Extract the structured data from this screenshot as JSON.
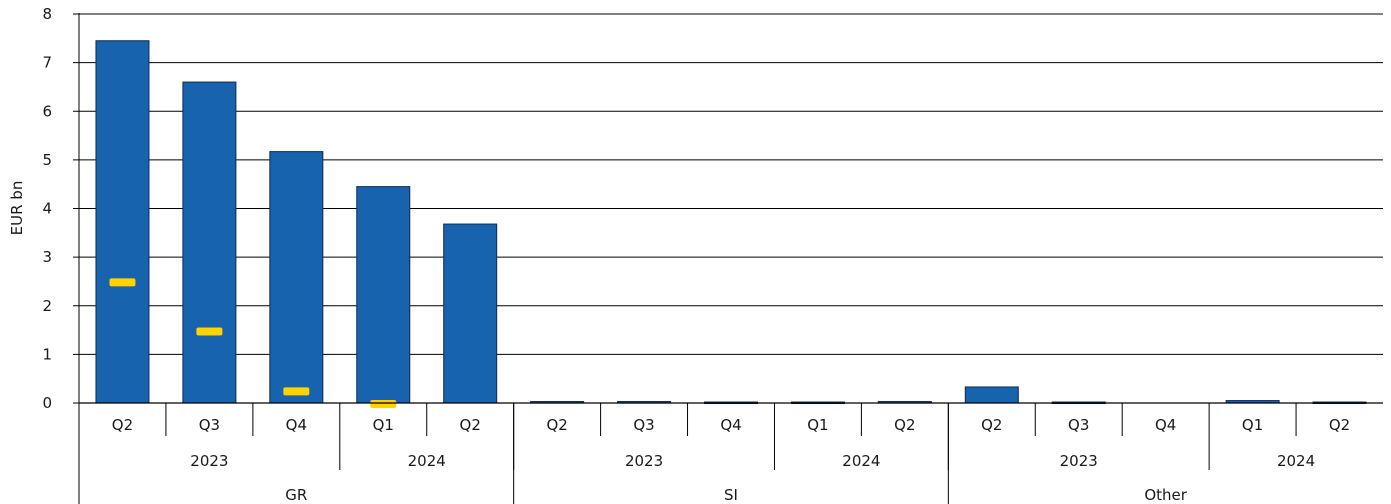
{
  "chart_data": {
    "type": "bar",
    "ylabel": "EUR bn",
    "ylim": [
      0,
      8
    ],
    "yticks": [
      0,
      1,
      2,
      3,
      4,
      5,
      6,
      7,
      8
    ],
    "grid": true,
    "colors": {
      "bar": "#1763AE",
      "bar_outline": "#0f2a55",
      "marker": "#FFD200",
      "grid": "#000000"
    },
    "categories": [
      "Q2",
      "Q3",
      "Q4",
      "Q1",
      "Q2",
      "Q2",
      "Q3",
      "Q4",
      "Q1",
      "Q2",
      "Q2",
      "Q3",
      "Q4",
      "Q1",
      "Q2"
    ],
    "years": [
      {
        "label": "2023",
        "span": [
          0,
          2
        ]
      },
      {
        "label": "2024",
        "span": [
          3,
          4
        ]
      },
      {
        "label": "2023",
        "span": [
          5,
          7
        ]
      },
      {
        "label": "2024",
        "span": [
          8,
          9
        ]
      },
      {
        "label": "2023",
        "span": [
          10,
          12
        ]
      },
      {
        "label": "2024",
        "span": [
          13,
          14
        ]
      }
    ],
    "groups": [
      {
        "label": "GR",
        "span": [
          0,
          4
        ]
      },
      {
        "label": "SI",
        "span": [
          5,
          9
        ]
      },
      {
        "label": "Other",
        "span": [
          10,
          14
        ]
      }
    ],
    "series": [
      {
        "type": "bar",
        "values": [
          7.45,
          6.6,
          5.17,
          4.45,
          3.68,
          0.03,
          0.03,
          0.02,
          0.02,
          0.03,
          0.33,
          0.02,
          0,
          0.05,
          0.02
        ]
      },
      {
        "type": "marker",
        "values": [
          2.48,
          1.47,
          0.24,
          -0.02,
          null,
          null,
          null,
          null,
          null,
          null,
          null,
          null,
          null,
          null,
          null
        ]
      }
    ]
  }
}
